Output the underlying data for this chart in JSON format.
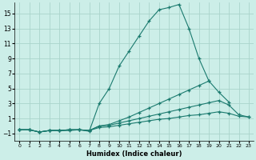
{
  "xlabel": "Humidex (Indice chaleur)",
  "background_color": "#cceee8",
  "grid_color": "#aad4cc",
  "line_color": "#1a7a6e",
  "xlim": [
    -0.5,
    23.5
  ],
  "ylim": [
    -2,
    16.5
  ],
  "xticks": [
    0,
    1,
    2,
    3,
    4,
    5,
    6,
    7,
    8,
    9,
    10,
    11,
    12,
    13,
    14,
    15,
    16,
    17,
    18,
    19,
    20,
    21,
    22,
    23
  ],
  "yticks": [
    -1,
    1,
    3,
    5,
    7,
    9,
    11,
    13,
    15
  ],
  "lines": [
    {
      "x": [
        0,
        1,
        2,
        3,
        4,
        5,
        6,
        7,
        8,
        9,
        10,
        11,
        12,
        13,
        14,
        15,
        16,
        17,
        18,
        19,
        20,
        21,
        22,
        23
      ],
      "y": [
        -0.5,
        -0.5,
        -0.8,
        -0.6,
        -0.6,
        -0.6,
        -0.5,
        -0.7,
        3,
        5,
        8,
        10,
        12,
        14,
        15.5,
        15.8,
        16.2,
        13,
        9,
        6,
        null,
        null,
        null,
        null
      ]
    },
    {
      "x": [
        0,
        1,
        2,
        3,
        4,
        5,
        6,
        7,
        8,
        9,
        10,
        11,
        12,
        13,
        14,
        15,
        16,
        17,
        18,
        19,
        20,
        21,
        22,
        23
      ],
      "y": [
        -0.5,
        -0.5,
        -0.8,
        -0.6,
        -0.6,
        -0.5,
        -0.5,
        -0.6,
        0,
        0.2,
        0.7,
        1.2,
        1.8,
        2.4,
        3.0,
        3.6,
        4.2,
        4.8,
        5.4,
        6.0,
        4.5,
        3.2,
        null,
        null
      ]
    },
    {
      "x": [
        0,
        1,
        2,
        3,
        4,
        5,
        6,
        7,
        8,
        9,
        10,
        11,
        12,
        13,
        14,
        15,
        16,
        17,
        18,
        19,
        20,
        21,
        22,
        23
      ],
      "y": [
        -0.5,
        -0.5,
        -0.8,
        -0.6,
        -0.6,
        -0.5,
        -0.5,
        -0.6,
        0,
        0.1,
        0.4,
        0.7,
        1.0,
        1.3,
        1.6,
        1.9,
        2.2,
        2.5,
        2.8,
        3.1,
        3.4,
        2.8,
        1.5,
        1.2
      ]
    },
    {
      "x": [
        0,
        1,
        2,
        3,
        4,
        5,
        6,
        7,
        8,
        9,
        10,
        11,
        12,
        13,
        14,
        15,
        16,
        17,
        18,
        19,
        20,
        21,
        22,
        23
      ],
      "y": [
        -0.5,
        -0.5,
        -0.8,
        -0.6,
        -0.6,
        -0.5,
        -0.5,
        -0.6,
        -0.2,
        -0.1,
        0.1,
        0.3,
        0.5,
        0.7,
        0.9,
        1.0,
        1.2,
        1.4,
        1.5,
        1.7,
        1.9,
        1.7,
        1.3,
        1.2
      ]
    }
  ]
}
